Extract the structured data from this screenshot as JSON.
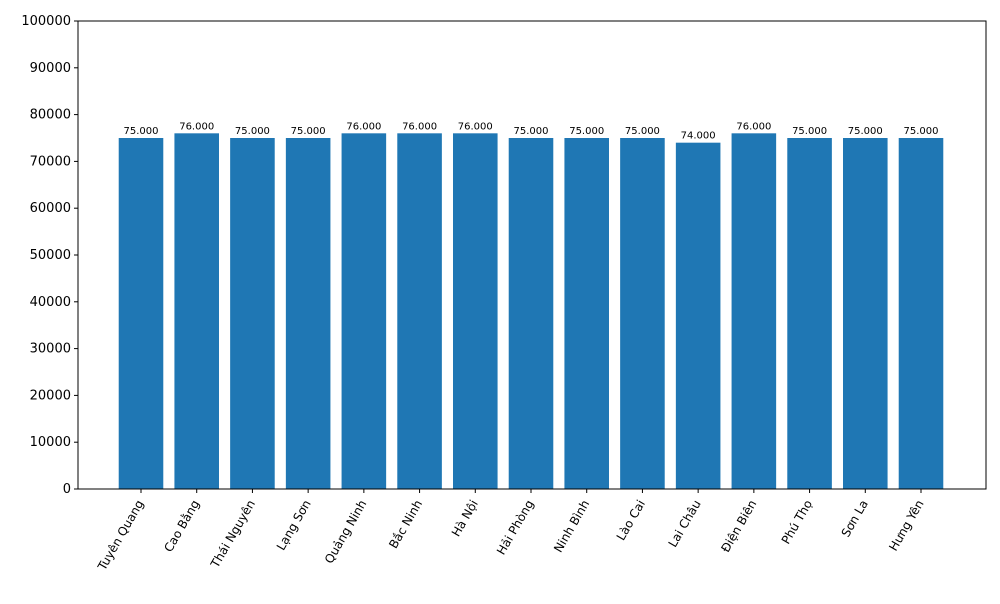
{
  "chart_data": {
    "type": "bar",
    "title": "",
    "xlabel": "",
    "ylabel": "",
    "ylim": [
      0,
      100000
    ],
    "yticks": [
      0,
      10000,
      20000,
      30000,
      40000,
      50000,
      60000,
      70000,
      80000,
      90000,
      100000
    ],
    "grid": false,
    "legend": "none",
    "categories": [
      "Tuyên Quang",
      "Cao Bằng",
      "Thái Nguyên",
      "Lạng Sơn",
      "Quảng Ninh",
      "Bắc Ninh",
      "Hà Nội",
      "Hải Phòng",
      "Ninh Bình",
      "Lào Cai",
      "Lai Châu",
      "Điện Biên",
      "Phú Thọ",
      "Sơn La",
      "Hưng Yên"
    ],
    "values": [
      75000,
      76000,
      75000,
      75000,
      76000,
      76000,
      76000,
      75000,
      75000,
      75000,
      74000,
      76000,
      75000,
      75000,
      75000
    ],
    "value_labels": [
      "75.000",
      "76.000",
      "75.000",
      "75.000",
      "76.000",
      "76.000",
      "76.000",
      "75.000",
      "75.000",
      "75.000",
      "74.000",
      "76.000",
      "75.000",
      "75.000",
      "75.000"
    ],
    "bar_color": "#1f77b4"
  }
}
